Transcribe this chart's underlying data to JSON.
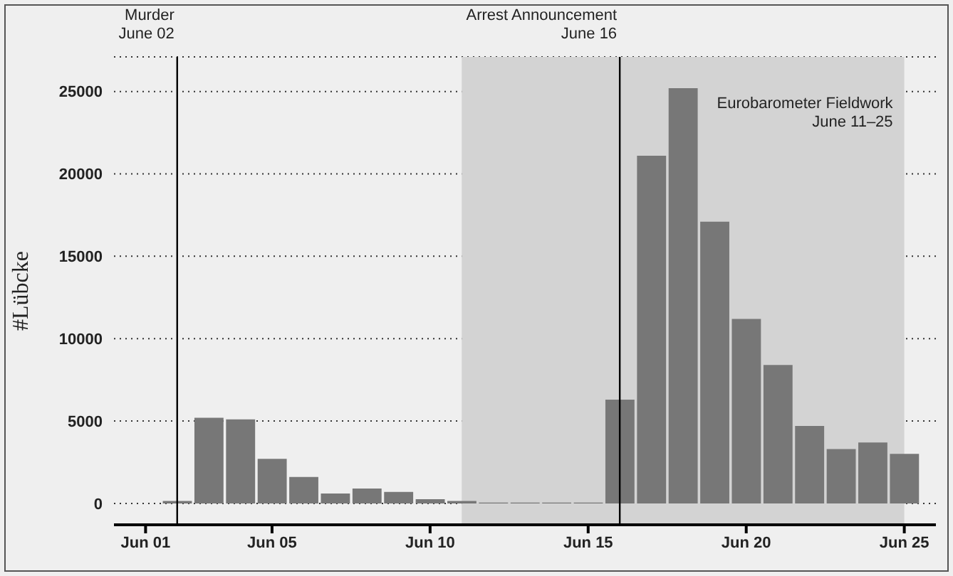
{
  "chart_data": {
    "type": "bar",
    "ylabel": "#Lübcke",
    "x": [
      "--06-02",
      "--06-03",
      "--06-04",
      "--06-05",
      "--06-06",
      "--06-07",
      "--06-08",
      "--06-09",
      "--06-10",
      "--06-11",
      "--06-12",
      "--06-13",
      "--06-14",
      "--06-15",
      "--06-16",
      "--06-17",
      "--06-18",
      "--06-19",
      "--06-20",
      "--06-21",
      "--06-22",
      "--06-23",
      "--06-24",
      "--06-25"
    ],
    "values": [
      150,
      5200,
      5100,
      2700,
      1600,
      600,
      900,
      700,
      250,
      150,
      50,
      50,
      50,
      50,
      6300,
      21100,
      25200,
      17100,
      11200,
      8400,
      4700,
      3300,
      3700,
      3000
    ],
    "color": "#777777",
    "xlim": [
      "--05-31",
      "--06-26"
    ],
    "xticks": [
      {
        "value": "--06-01",
        "label": "Jun 01"
      },
      {
        "value": "--06-05",
        "label": "Jun 05"
      },
      {
        "value": "--06-10",
        "label": "Jun 10"
      },
      {
        "value": "--06-15",
        "label": "Jun 15"
      },
      {
        "value": "--06-20",
        "label": "Jun 20"
      },
      {
        "value": "--06-25",
        "label": "Jun 25"
      }
    ],
    "ylim": [
      -1300,
      27100
    ],
    "yticks": [
      0,
      5000,
      10000,
      15000,
      20000,
      25000
    ],
    "grid": "y",
    "ref_lines": [
      {
        "axis": "x",
        "value": "--06-02",
        "label": "Murder\nJune 02",
        "color": "#000000"
      },
      {
        "axis": "x",
        "value": "--06-16",
        "label": "Arrest Announcement\nJune 16",
        "color": "#000000"
      }
    ],
    "bands": [
      {
        "axis": "x",
        "from": "--06-11",
        "to": "--06-25",
        "label": "Eurobarometer Fieldwork\nJune 11–25",
        "color": "#d3d3d3"
      }
    ]
  }
}
